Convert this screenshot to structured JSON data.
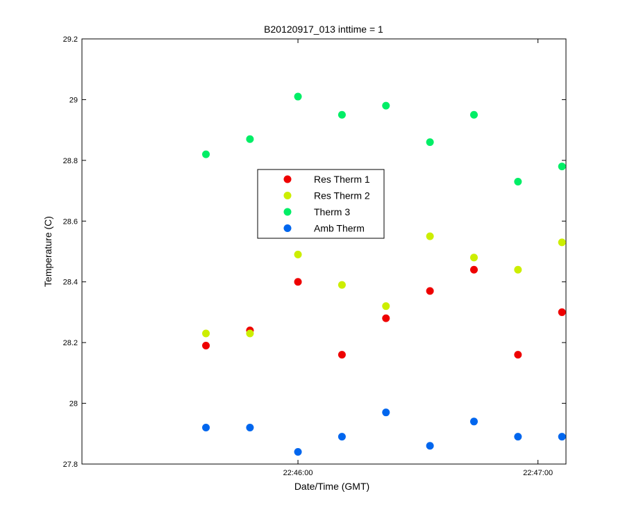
{
  "chart_data": {
    "type": "scatter",
    "title": "B20120917_013 inttime = 1",
    "xlabel": "Date/Time (GMT)",
    "ylabel": "Temperature (C)",
    "xlim": [
      "22:45:06",
      "22:47:07"
    ],
    "ylim": [
      27.8,
      29.2
    ],
    "x_ticks": [
      "22:46:00",
      "22:47:00"
    ],
    "y_ticks": [
      27.8,
      28.0,
      28.2,
      28.4,
      28.6,
      28.8,
      29.0,
      29.2
    ],
    "y_tick_labels": [
      "27.8",
      "28",
      "28.2",
      "28.4",
      "28.6",
      "28.8",
      "29",
      "29.2"
    ],
    "grid": false,
    "legend_position": "center",
    "x": [
      "22:45:37",
      "22:45:48",
      "22:46:00",
      "22:46:11",
      "22:46:22",
      "22:46:33",
      "22:46:44",
      "22:46:55",
      "22:47:06"
    ],
    "series": [
      {
        "name": "Res Therm 1",
        "color": "#ee0000",
        "values": [
          28.19,
          28.24,
          28.4,
          28.16,
          28.28,
          28.37,
          28.44,
          28.16,
          28.3
        ]
      },
      {
        "name": "Res Therm 2",
        "color": "#ccee00",
        "values": [
          28.23,
          28.23,
          28.49,
          28.39,
          28.32,
          28.55,
          28.48,
          28.44,
          28.53
        ]
      },
      {
        "name": "Therm 3",
        "color": "#00ee66",
        "values": [
          28.82,
          28.87,
          29.01,
          28.95,
          28.98,
          28.86,
          28.95,
          28.73,
          28.78
        ]
      },
      {
        "name": "Amb Therm",
        "color": "#0066ee",
        "values": [
          27.92,
          27.92,
          27.84,
          27.89,
          27.97,
          27.86,
          27.94,
          27.89,
          27.89
        ]
      }
    ]
  }
}
